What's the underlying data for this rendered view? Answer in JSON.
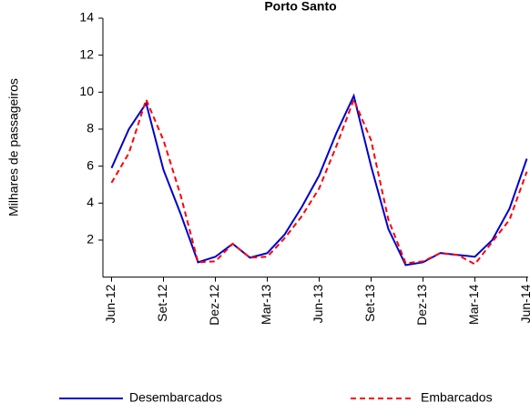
{
  "chart_data": {
    "type": "line",
    "title": "Porto Santo",
    "y_label": "Milhares de passageiros",
    "categories": [
      "Jun-12",
      null,
      null,
      "Set-12",
      null,
      null,
      "Dez-12",
      null,
      null,
      "Mar-13",
      null,
      null,
      "Jun-13",
      null,
      null,
      "Set-13",
      null,
      null,
      "Dez-13",
      null,
      null,
      "Mar-14",
      null,
      null,
      "Jun-14"
    ],
    "series": [
      {
        "name": "Desembarcados",
        "color": "#0000cc",
        "dashed": false,
        "values": [
          5.9,
          8.0,
          9.4,
          5.8,
          3.4,
          0.8,
          1.1,
          1.8,
          1.05,
          1.3,
          2.3,
          3.8,
          5.5,
          7.8,
          9.8,
          6.0,
          2.6,
          0.65,
          0.8,
          1.3,
          1.2,
          1.1,
          2.0,
          3.7,
          6.4
        ]
      },
      {
        "name": "Embarcados",
        "color": "#ff0000",
        "dashed": true,
        "values": [
          5.1,
          6.7,
          9.6,
          7.4,
          4.4,
          0.8,
          0.85,
          1.8,
          1.05,
          1.1,
          2.1,
          3.3,
          4.8,
          7.1,
          9.6,
          7.4,
          3.1,
          0.75,
          0.85,
          1.3,
          1.2,
          0.7,
          1.9,
          3.1,
          5.7
        ]
      }
    ],
    "ylim": [
      0,
      14
    ],
    "yticks": [
      2,
      4,
      6,
      8,
      10,
      12,
      14
    ],
    "grid": false,
    "legend": "bottom"
  }
}
